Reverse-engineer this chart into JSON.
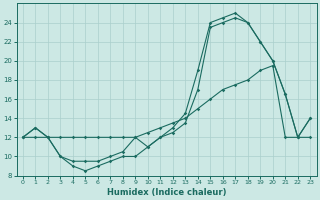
{
  "xlabel": "Humidex (Indice chaleur)",
  "bg_color": "#cce8e4",
  "grid_color": "#aacfcc",
  "line_color": "#1a6b60",
  "xlim": [
    -0.5,
    23.5
  ],
  "ylim": [
    8,
    26
  ],
  "xticks": [
    0,
    1,
    2,
    3,
    4,
    5,
    6,
    7,
    8,
    9,
    10,
    11,
    12,
    13,
    14,
    15,
    16,
    17,
    18,
    19,
    20,
    21,
    22,
    23
  ],
  "yticks": [
    8,
    10,
    12,
    14,
    16,
    18,
    20,
    22,
    24
  ],
  "series1_x": [
    0,
    1,
    2,
    3,
    4,
    5,
    6,
    7,
    8,
    9,
    10,
    11,
    12,
    13,
    14,
    15,
    16,
    17,
    18,
    19,
    20,
    21,
    22,
    23
  ],
  "series1_y": [
    12,
    13,
    12,
    10,
    9.5,
    9.5,
    9.5,
    10,
    10.5,
    12,
    11,
    12,
    13,
    14.5,
    19,
    24,
    24.5,
    25,
    24,
    22,
    20,
    16.5,
    12,
    14
  ],
  "series2_x": [
    0,
    1,
    2,
    3,
    4,
    5,
    6,
    7,
    8,
    9,
    10,
    11,
    12,
    13,
    14,
    15,
    16,
    17,
    18,
    19,
    20,
    21,
    22,
    23
  ],
  "series2_y": [
    12,
    13,
    12,
    10,
    9,
    8.5,
    9,
    9.5,
    10,
    10,
    11,
    12,
    12.5,
    13.5,
    17,
    23.5,
    24,
    24.5,
    24,
    22,
    20,
    16.5,
    12,
    14
  ],
  "series3_x": [
    0,
    1,
    2,
    3,
    4,
    5,
    6,
    7,
    8,
    9,
    10,
    11,
    12,
    13,
    14,
    15,
    16,
    17,
    18,
    19,
    20,
    21,
    22,
    23
  ],
  "series3_y": [
    12,
    12,
    12,
    12,
    12,
    12,
    12,
    12,
    12,
    12,
    12.5,
    13,
    13.5,
    14,
    15,
    16,
    17,
    17.5,
    18,
    19,
    19.5,
    12,
    12,
    12
  ]
}
